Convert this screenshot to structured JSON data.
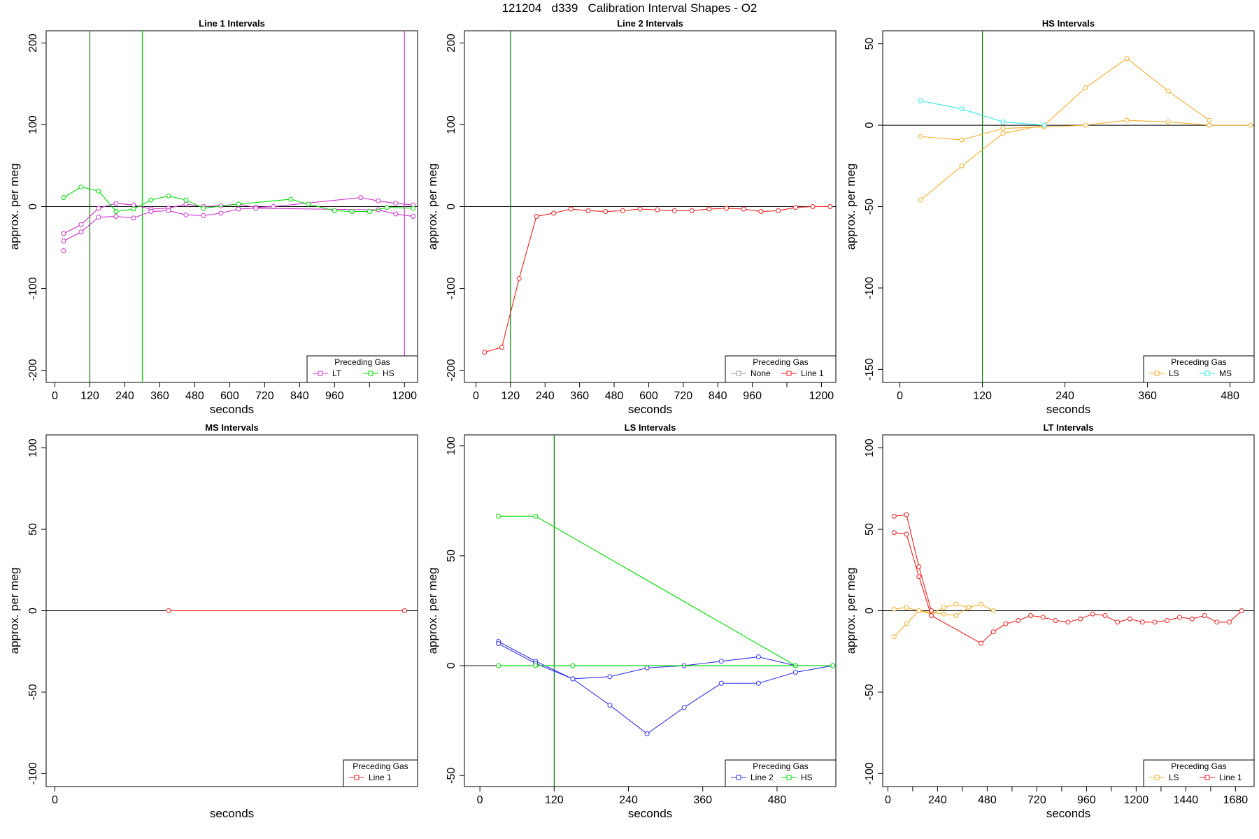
{
  "page_title": "121204   d339   Calibration Interval Shapes - O2",
  "chart_data": [
    {
      "type": "line",
      "title": "Line 1 Intervals",
      "xlabel": "seconds",
      "ylabel": "approx. per meg",
      "xlim": [
        -30,
        1245
      ],
      "ylim": [
        -215,
        215
      ],
      "xticks": [
        0,
        120,
        240,
        360,
        480,
        600,
        720,
        840,
        960,
        1200
      ],
      "xminor": [
        1080
      ],
      "yticks": [
        -200,
        -100,
        0,
        100,
        200
      ],
      "hlines": [
        0
      ],
      "vlines": [
        {
          "x": 120,
          "color": "#008000"
        },
        {
          "x": 300,
          "color": "#00dd00"
        },
        {
          "x": 1200,
          "color": "#cc33cc"
        }
      ],
      "legend": {
        "title": "Preceding Gas",
        "entries": [
          {
            "label": "LT",
            "color": "#cc33cc"
          },
          {
            "label": "HS",
            "color": "#00dd00"
          }
        ]
      },
      "series": [
        {
          "name": "LT",
          "color": "#cc33cc",
          "points": [
            [
              30,
              -33
            ],
            [
              90,
              -22
            ],
            [
              150,
              -2
            ],
            [
              210,
              4
            ],
            [
              270,
              2
            ],
            [
              330,
              -3
            ],
            [
              390,
              -2
            ],
            [
              450,
              3
            ],
            [
              510,
              0
            ],
            [
              570,
              1
            ],
            [
              630,
              3
            ],
            [
              690,
              -1
            ],
            [
              750,
              0
            ],
            [
              1050,
              11
            ],
            [
              1110,
              7
            ],
            [
              1170,
              4
            ],
            [
              1230,
              2
            ]
          ]
        },
        {
          "name": "LT",
          "color": "#cc33cc",
          "points": [
            [
              30,
              -42
            ],
            [
              90,
              -31
            ],
            [
              150,
              -13
            ],
            [
              210,
              -12
            ],
            [
              270,
              -14
            ],
            [
              330,
              -6
            ],
            [
              390,
              -5
            ],
            [
              450,
              -10
            ],
            [
              510,
              -11
            ],
            [
              570,
              -8
            ],
            [
              630,
              -3
            ],
            [
              690,
              -2
            ],
            [
              1110,
              -4
            ],
            [
              1170,
              -9
            ],
            [
              1230,
              -12
            ]
          ]
        },
        {
          "name": "LT",
          "color": "#cc33cc",
          "points": [
            [
              30,
              -54
            ]
          ]
        },
        {
          "name": "HS",
          "color": "#00dd00",
          "points": [
            [
              30,
              11
            ],
            [
              90,
              24
            ],
            [
              150,
              19
            ],
            [
              210,
              -6
            ],
            [
              270,
              -3
            ],
            [
              330,
              8
            ],
            [
              390,
              13
            ],
            [
              450,
              8
            ],
            [
              510,
              -2
            ],
            [
              630,
              3
            ],
            [
              810,
              9
            ],
            [
              870,
              3
            ],
            [
              960,
              -5
            ],
            [
              1020,
              -6
            ],
            [
              1080,
              -6
            ],
            [
              1140,
              -1
            ],
            [
              1230,
              -2
            ]
          ]
        }
      ]
    },
    {
      "type": "line",
      "title": "Line 2 Intervals",
      "xlabel": "seconds",
      "ylabel": "approx. per meg",
      "xlim": [
        -40,
        1250
      ],
      "ylim": [
        -215,
        215
      ],
      "xticks": [
        0,
        120,
        240,
        360,
        480,
        600,
        720,
        840,
        960,
        1200
      ],
      "xminor": [
        1080
      ],
      "yticks": [
        -200,
        -100,
        0,
        100,
        200
      ],
      "hlines": [
        0
      ],
      "vlines": [
        {
          "x": 120,
          "color": "#008000"
        }
      ],
      "legend": {
        "title": "Preceding Gas",
        "entries": [
          {
            "label": "None",
            "color": "#999999"
          },
          {
            "label": "Line 1",
            "color": "#ee2222"
          }
        ]
      },
      "series": [
        {
          "name": "Line 1",
          "color": "#ee2222",
          "points": [
            [
              30,
              -178
            ],
            [
              90,
              -172
            ],
            [
              150,
              -88
            ],
            [
              210,
              -12
            ],
            [
              270,
              -8
            ],
            [
              330,
              -3
            ],
            [
              390,
              -5
            ],
            [
              450,
              -6
            ],
            [
              510,
              -5
            ],
            [
              570,
              -3
            ],
            [
              630,
              -4
            ],
            [
              690,
              -5
            ],
            [
              750,
              -5
            ],
            [
              810,
              -3
            ],
            [
              870,
              -2
            ],
            [
              930,
              -3
            ],
            [
              990,
              -6
            ],
            [
              1050,
              -5
            ],
            [
              1110,
              -1
            ],
            [
              1170,
              0
            ],
            [
              1230,
              0
            ]
          ]
        }
      ]
    },
    {
      "type": "line",
      "title": "HS Intervals",
      "xlabel": "seconds",
      "ylabel": "approx. per meg",
      "xlim": [
        -25,
        515
      ],
      "ylim": [
        -158,
        58
      ],
      "xticks": [
        0,
        120,
        240,
        360,
        480
      ],
      "xminor": [],
      "yticks": [
        -150,
        -100,
        -50,
        0,
        50
      ],
      "hlines": [
        0
      ],
      "vlines": [
        {
          "x": 120,
          "color": "#008000"
        }
      ],
      "legend": {
        "title": "Preceding Gas",
        "entries": [
          {
            "label": "LS",
            "color": "#f0b030"
          },
          {
            "label": "MS",
            "color": "#33e6e6"
          }
        ]
      },
      "series": [
        {
          "name": "LS",
          "color": "#f0b030",
          "points": [
            [
              30,
              -7
            ],
            [
              90,
              -9
            ],
            [
              150,
              -2
            ],
            [
              210,
              -1
            ],
            [
              270,
              0
            ],
            [
              330,
              3
            ],
            [
              390,
              2
            ],
            [
              450,
              0
            ],
            [
              510,
              0
            ]
          ]
        },
        {
          "name": "LS",
          "color": "#f0b030",
          "points": [
            [
              30,
              -46
            ],
            [
              90,
              -25
            ],
            [
              150,
              -5
            ],
            [
              210,
              0
            ],
            [
              270,
              23
            ],
            [
              330,
              41
            ],
            [
              390,
              21
            ],
            [
              450,
              3
            ]
          ]
        },
        {
          "name": "MS",
          "color": "#33e6e6",
          "points": [
            [
              30,
              15
            ],
            [
              90,
              10
            ],
            [
              150,
              2
            ],
            [
              210,
              0
            ]
          ]
        }
      ]
    },
    {
      "type": "line",
      "title": "MS Intervals",
      "xlabel": "seconds",
      "ylabel": "approx. per meg",
      "xlim": [
        -30,
        1245
      ],
      "ylim": [
        -108,
        108
      ],
      "xticks": [
        0
      ],
      "xminor": [],
      "yticks": [
        -100,
        -50,
        0,
        50,
        100
      ],
      "hlines": [
        0
      ],
      "vlines": [],
      "legend": {
        "title": "Preceding Gas",
        "entries": [
          {
            "label": "Line 1",
            "color": "#ee2222"
          }
        ]
      },
      "series": [
        {
          "name": "Line 1",
          "color": "#ee2222",
          "points": [
            [
              390,
              0
            ],
            [
              1200,
              0
            ]
          ]
        }
      ]
    },
    {
      "type": "line",
      "title": "LS Intervals",
      "xlabel": "seconds",
      "ylabel": "approx. per meg",
      "xlim": [
        -25,
        575
      ],
      "ylim": [
        -55,
        105
      ],
      "xticks": [
        0,
        120,
        240,
        360,
        480
      ],
      "xminor": [],
      "yticks": [
        -50,
        0,
        50,
        100
      ],
      "hlines": [
        0
      ],
      "vlines": [
        {
          "x": 120,
          "color": "#008000"
        }
      ],
      "legend": {
        "title": "Preceding Gas",
        "entries": [
          {
            "label": "Line 2",
            "color": "#3333ee"
          },
          {
            "label": "HS",
            "color": "#00dd00"
          }
        ]
      },
      "series": [
        {
          "name": "Line 2",
          "color": "#3333ee",
          "points": [
            [
              30,
              11
            ],
            [
              90,
              2
            ],
            [
              150,
              -6
            ],
            [
              210,
              -5
            ],
            [
              270,
              -1
            ],
            [
              330,
              0
            ],
            [
              390,
              2
            ],
            [
              450,
              4
            ],
            [
              510,
              0
            ]
          ]
        },
        {
          "name": "Line 2",
          "color": "#3333ee",
          "points": [
            [
              30,
              10
            ],
            [
              90,
              1
            ],
            [
              150,
              -6
            ],
            [
              210,
              -18
            ],
            [
              270,
              -31
            ],
            [
              330,
              -19
            ],
            [
              390,
              -8
            ],
            [
              450,
              -8
            ],
            [
              510,
              -3
            ],
            [
              570,
              0
            ]
          ]
        },
        {
          "name": "HS",
          "color": "#00dd00",
          "points": [
            [
              30,
              68
            ],
            [
              90,
              68
            ],
            [
              510,
              0
            ]
          ]
        },
        {
          "name": "HS",
          "color": "#00dd00",
          "points": [
            [
              30,
              0
            ],
            [
              90,
              0
            ],
            [
              150,
              0
            ],
            [
              570,
              0
            ]
          ]
        }
      ]
    },
    {
      "type": "line",
      "title": "LT Intervals",
      "xlabel": "seconds",
      "ylabel": "approx. per meg",
      "xlim": [
        -25,
        1770
      ],
      "ylim": [
        -108,
        108
      ],
      "xticks": [
        0,
        240,
        480,
        720,
        960,
        1200,
        1440,
        1680
      ],
      "xminor": [
        120,
        360,
        600,
        840,
        1080,
        1320,
        1560
      ],
      "yticks": [
        -100,
        -50,
        0,
        50,
        100
      ],
      "hlines": [
        0
      ],
      "vlines": [],
      "legend": {
        "title": "Preceding Gas",
        "entries": [
          {
            "label": "LS",
            "color": "#f0b030"
          },
          {
            "label": "Line 1",
            "color": "#ee2222"
          }
        ]
      },
      "series": [
        {
          "name": "LS",
          "color": "#f0b030",
          "points": [
            [
              30,
              1
            ],
            [
              90,
              2
            ],
            [
              150,
              0
            ],
            [
              210,
              -2
            ],
            [
              270,
              2
            ],
            [
              330,
              4
            ],
            [
              390,
              2
            ],
            [
              450,
              4
            ],
            [
              510,
              0
            ]
          ]
        },
        {
          "name": "LS",
          "color": "#f0b030",
          "points": [
            [
              30,
              -16
            ],
            [
              90,
              -8
            ],
            [
              150,
              0
            ],
            [
              210,
              -1
            ],
            [
              270,
              -2
            ],
            [
              330,
              -3
            ],
            [
              390,
              2
            ]
          ]
        },
        {
          "name": "Line 1",
          "color": "#ee2222",
          "points": [
            [
              30,
              58
            ],
            [
              90,
              59
            ],
            [
              150,
              27
            ],
            [
              210,
              0
            ]
          ]
        },
        {
          "name": "Line 1",
          "color": "#ee2222",
          "points": [
            [
              30,
              48
            ],
            [
              90,
              47
            ],
            [
              150,
              21
            ],
            [
              210,
              -3
            ],
            [
              450,
              -20
            ],
            [
              510,
              -13
            ],
            [
              570,
              -8
            ],
            [
              630,
              -6
            ],
            [
              690,
              -3
            ],
            [
              750,
              -4
            ],
            [
              810,
              -6
            ],
            [
              870,
              -7
            ],
            [
              930,
              -5
            ],
            [
              990,
              -2
            ],
            [
              1050,
              -3
            ],
            [
              1110,
              -7
            ],
            [
              1170,
              -5
            ],
            [
              1230,
              -7
            ],
            [
              1290,
              -7
            ],
            [
              1350,
              -6
            ],
            [
              1410,
              -4
            ],
            [
              1470,
              -5
            ],
            [
              1530,
              -3
            ],
            [
              1590,
              -7
            ],
            [
              1650,
              -7
            ],
            [
              1710,
              0
            ]
          ]
        }
      ]
    }
  ]
}
